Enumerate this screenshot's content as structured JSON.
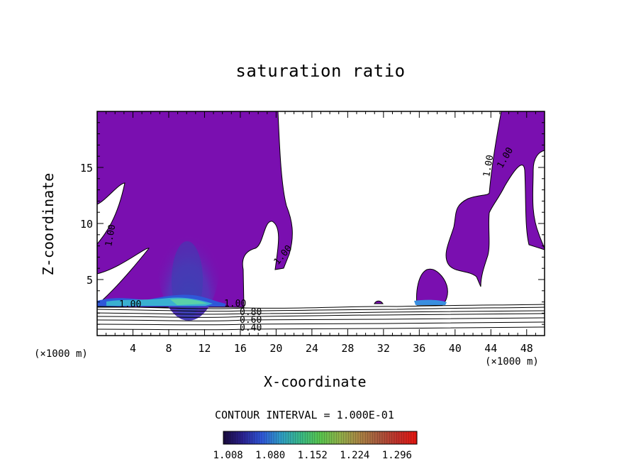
{
  "chart_data": {
    "type": "contour",
    "title": "saturation ratio",
    "xlabel": "X-coordinate",
    "ylabel": "Z-coordinate",
    "x_unit_left": "(×1000 m)",
    "x_unit_right": "(×1000 m)",
    "xlim": [
      0,
      50
    ],
    "ylim": [
      0,
      20
    ],
    "xticks": [
      4,
      8,
      12,
      16,
      20,
      24,
      28,
      32,
      36,
      40,
      44,
      48
    ],
    "yticks": [
      5,
      10,
      15
    ],
    "contour_interval_text": "CONTOUR INTERVAL = 1.000E-01",
    "contour_labels": [
      "1.00",
      "1.00",
      "1.00",
      "1.00",
      "1.00",
      "1.00",
      "0.80",
      "0.60",
      "0.40"
    ],
    "colorbar": {
      "tick_labels": [
        "1.008",
        "1.080",
        "1.152",
        "1.224",
        "1.296"
      ],
      "range": [
        1.0,
        1.33
      ],
      "colors": [
        "#1a0b3d",
        "#2b2290",
        "#2f57d8",
        "#2f9ec4",
        "#3ab986",
        "#58c44e",
        "#8fb04a",
        "#a98544",
        "#a85a3e",
        "#c0302a",
        "#e7150f"
      ]
    },
    "fill_color_saturated": "#7a0fb0",
    "fill_color_core": "#5a28b4",
    "fill_color_peak": "#3b9ee8"
  }
}
